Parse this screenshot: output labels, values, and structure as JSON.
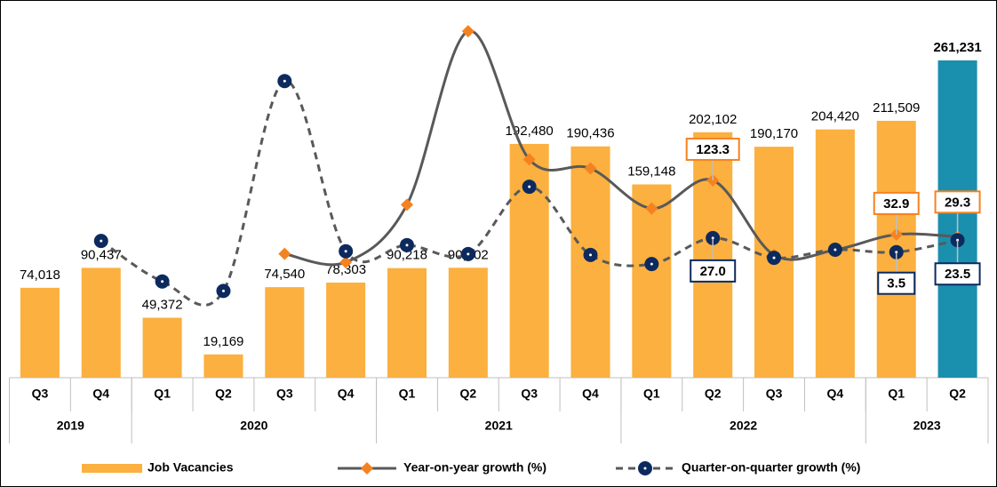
{
  "chart_data": {
    "type": "bar_line",
    "categories": [
      "Q3",
      "Q4",
      "Q1",
      "Q2",
      "Q3",
      "Q4",
      "Q1",
      "Q2",
      "Q3",
      "Q4",
      "Q1",
      "Q2",
      "Q3",
      "Q4",
      "Q1",
      "Q2"
    ],
    "groups": [
      {
        "label": "2019",
        "count": 2
      },
      {
        "label": "2020",
        "count": 4
      },
      {
        "label": "2021",
        "count": 4
      },
      {
        "label": "2022",
        "count": 4
      },
      {
        "label": "2023",
        "count": 2
      }
    ],
    "ylim": [
      0,
      300000
    ],
    "y2lim": [
      -206,
      402
    ],
    "series": [
      {
        "name": "Job Vacancies",
        "type": "bar",
        "color": "#fbb040",
        "colors": [
          "#fbb040",
          "#fbb040",
          "#fbb040",
          "#fbb040",
          "#fbb040",
          "#fbb040",
          "#fbb040",
          "#fbb040",
          "#fbb040",
          "#fbb040",
          "#fbb040",
          "#fbb040",
          "#fbb040",
          "#fbb040",
          "#fbb040",
          "#1b8fae"
        ],
        "values": [
          74018,
          90437,
          49372,
          19169,
          74540,
          78303,
          90218,
          90502,
          192480,
          190436,
          159148,
          202102,
          190170,
          204420,
          211509,
          261231
        ],
        "value_labels": [
          "74,018",
          "90,437",
          "49,372",
          "19,169",
          "74,540",
          "78,303",
          "90,218",
          "90,502",
          "192,480",
          "190,436",
          "159,148",
          "202,102",
          "190,170",
          "204,420",
          "211,509",
          "261,231"
        ]
      },
      {
        "name": "Year-on-year growth (%)",
        "type": "line",
        "axis": "y2",
        "color": "#595959",
        "marker_color": "#f58220",
        "marker": "diamond",
        "dashed": false,
        "values": [
          null,
          null,
          null,
          null,
          0.7,
          -13.4,
          82.7,
          372.1,
          158.2,
          143.2,
          76.4,
          123.3,
          -1.2,
          7.3,
          32.9,
          29.3
        ],
        "value_labels": [
          null,
          null,
          null,
          null,
          null,
          null,
          null,
          null,
          null,
          null,
          null,
          "123.3",
          null,
          null,
          "32.9",
          "29.3"
        ]
      },
      {
        "name": "Quarter-on-quarter growth (%)",
        "type": "line",
        "axis": "y2",
        "color": "#595959",
        "marker_color": "#0d2a5e",
        "marker": "circle",
        "dashed": true,
        "values": [
          null,
          22.2,
          -45.4,
          -61.2,
          288.9,
          5.0,
          15.2,
          0.3,
          112.7,
          -1.1,
          -16.4,
          27.0,
          -5.9,
          7.5,
          3.5,
          23.5
        ],
        "value_labels": [
          null,
          null,
          null,
          null,
          null,
          null,
          null,
          null,
          null,
          null,
          null,
          "27.0",
          null,
          null,
          "3.5",
          "23.5"
        ]
      }
    ]
  }
}
